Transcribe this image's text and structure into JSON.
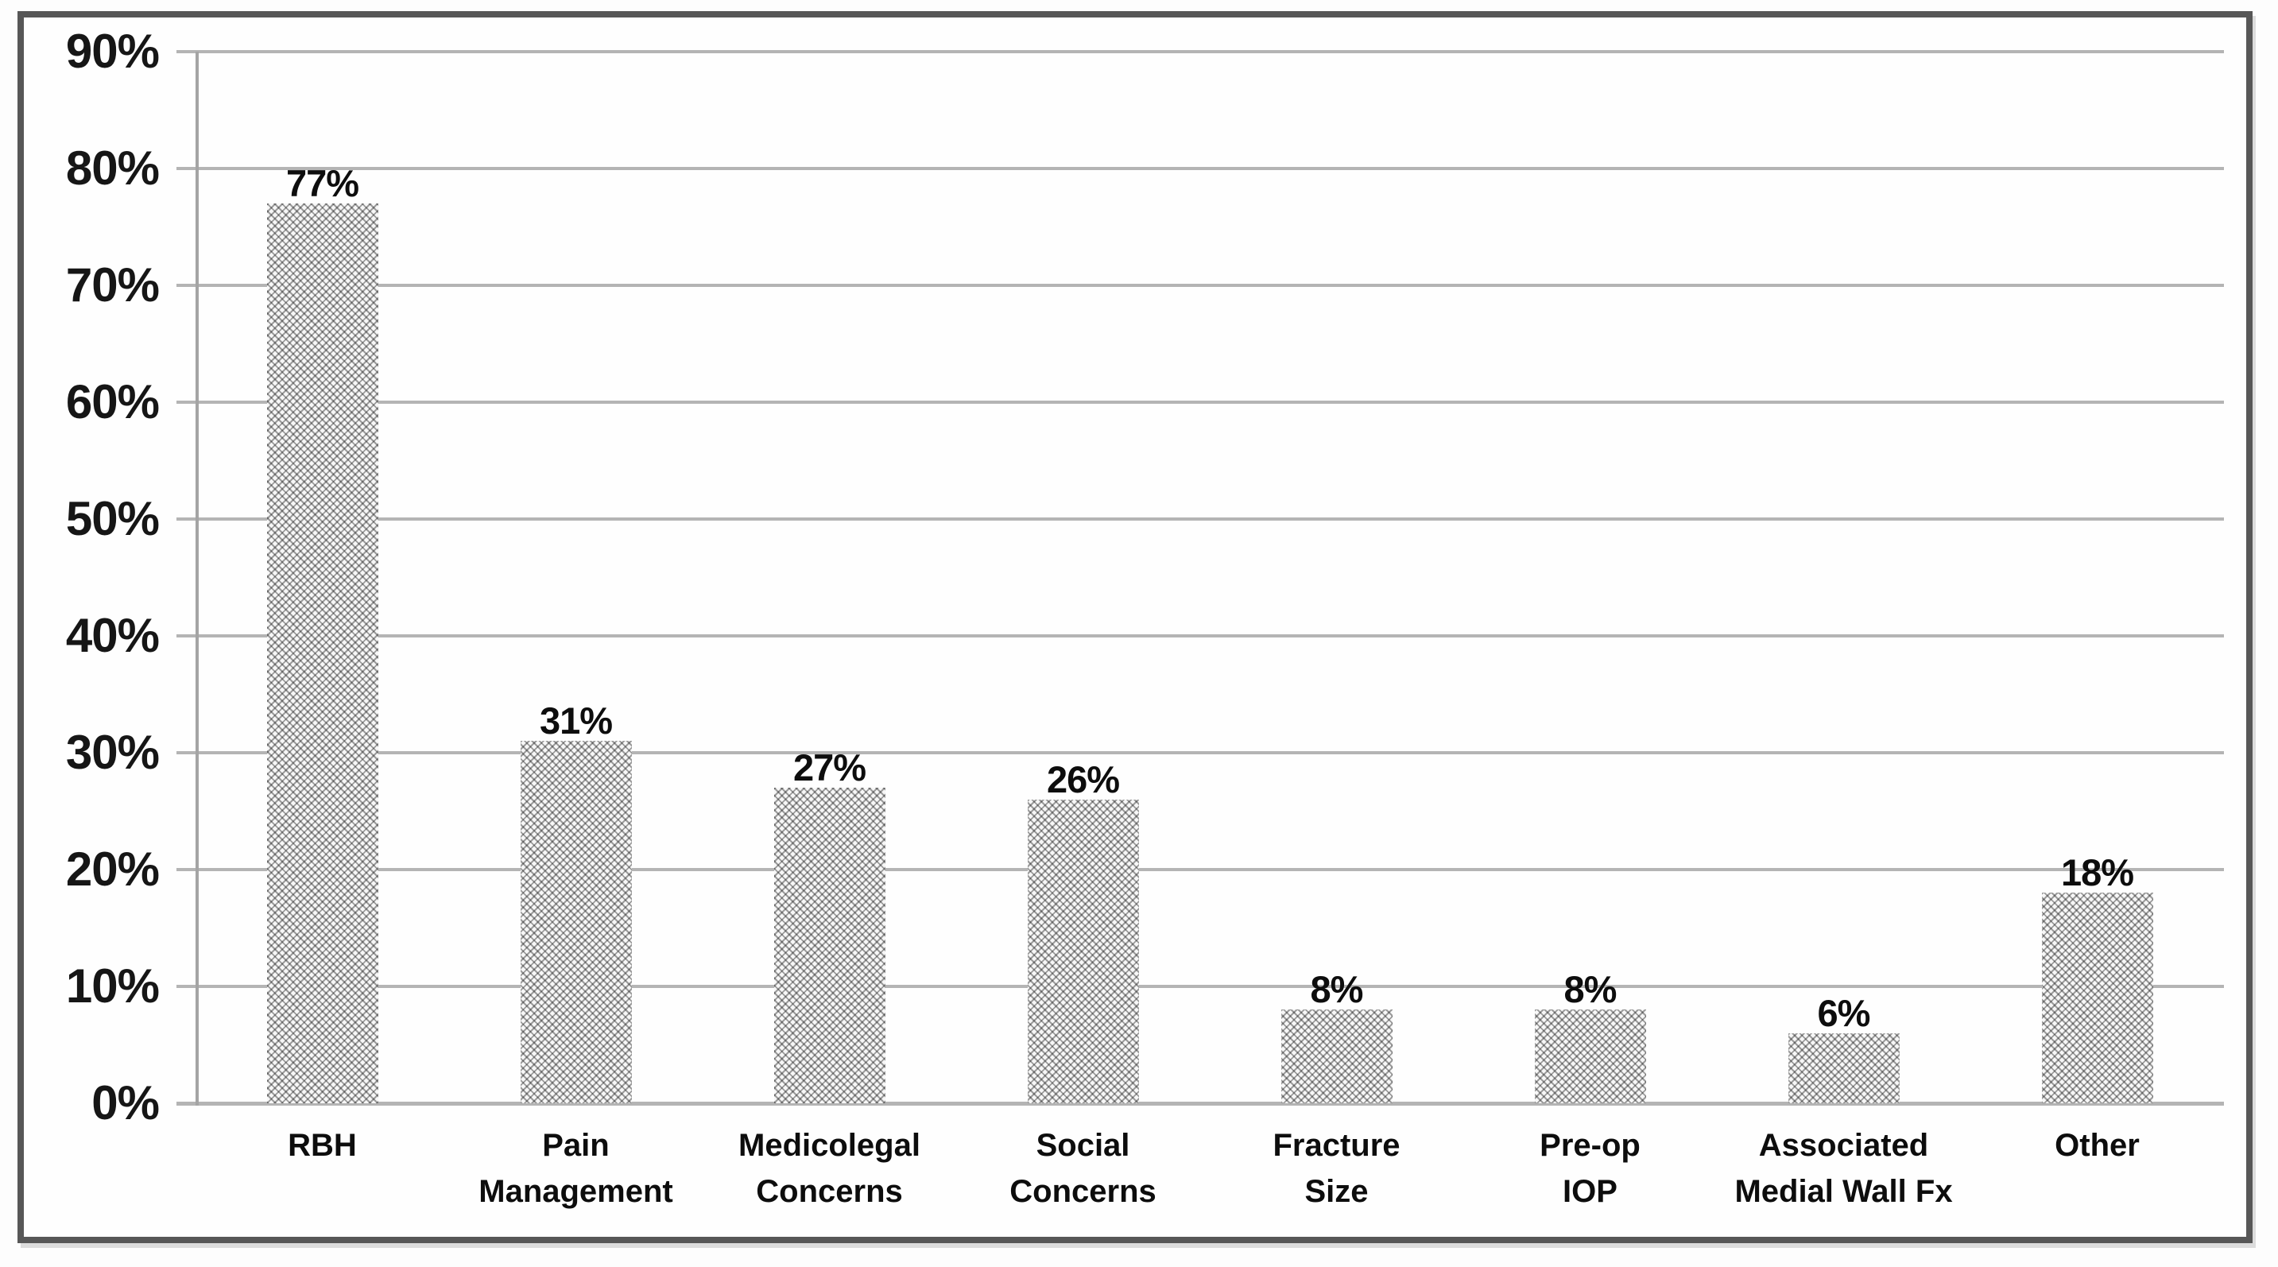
{
  "chart_data": {
    "type": "bar",
    "title": "",
    "xlabel": "",
    "ylabel": "",
    "categories": [
      "RBH",
      "Pain Management",
      "Medicolegal Concerns",
      "Social Concerns",
      "Fracture Size",
      "Pre-op IOP",
      "Associated Medial Wall Fx",
      "Other"
    ],
    "category_label_lines": [
      [
        "RBH"
      ],
      [
        "Pain",
        "Management"
      ],
      [
        "Medicolegal",
        "Concerns"
      ],
      [
        "Social",
        "Concerns"
      ],
      [
        "Fracture",
        "Size"
      ],
      [
        "Pre-op",
        "IOP"
      ],
      [
        "Associated",
        "Medial Wall Fx"
      ],
      [
        "Other"
      ]
    ],
    "values": [
      77,
      31,
      27,
      26,
      8,
      8,
      6,
      18
    ],
    "bar_labels": [
      "77%",
      "31%",
      "27%",
      "26%",
      "8%",
      "8%",
      "6%",
      "18%"
    ],
    "y_tick_values": [
      0,
      10,
      20,
      30,
      40,
      50,
      60,
      70,
      80,
      90
    ],
    "y_tick_labels": [
      "0%",
      "10%",
      "20%",
      "30%",
      "40%",
      "50%",
      "60%",
      "70%",
      "80%",
      "90%"
    ],
    "ylim": [
      0,
      90
    ],
    "grid": true,
    "legend": false,
    "bar_fill": "diagonal-crosshatch-pattern",
    "colors": {
      "gridline": "#b4b4b4",
      "axis_line": "#a4a4a4",
      "frame": "#575757",
      "text": "#0d0d0d",
      "bar_pattern": "#9a9a9a",
      "background": "#fefefe"
    }
  }
}
